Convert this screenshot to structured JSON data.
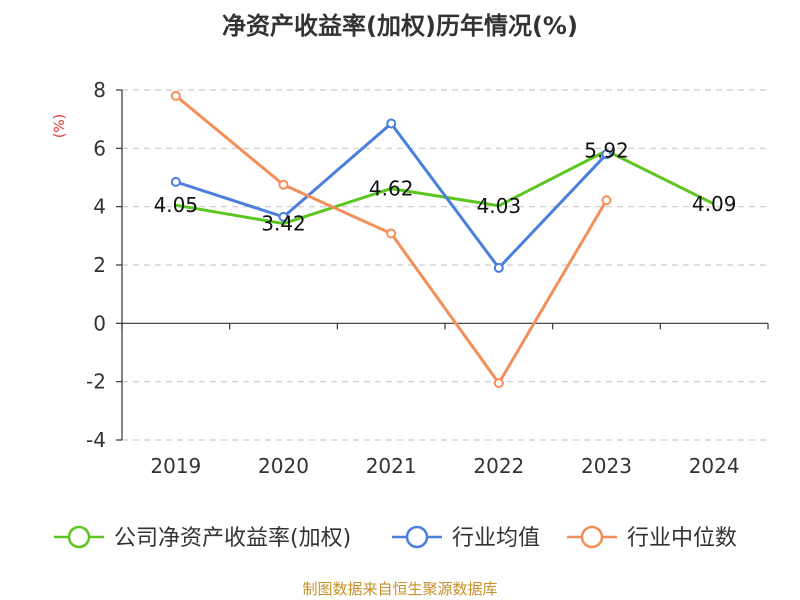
{
  "chart_data": {
    "type": "line",
    "title": "净资产收益率(加权)历年情况(%)",
    "ylabel": "(%)",
    "x": [
      "2019",
      "2020",
      "2021",
      "2022",
      "2023",
      "2024"
    ],
    "ylim": [
      -4,
      8
    ],
    "yticks": [
      8,
      6,
      4,
      2,
      0,
      -2,
      -4
    ],
    "grid": true,
    "legend_position": "bottom",
    "series": [
      {
        "name": "公司净资产收益率(加权)",
        "color": "#5cc520",
        "values": [
          4.05,
          3.42,
          4.62,
          4.03,
          5.92,
          4.09
        ],
        "labels": [
          "4.05",
          "3.42",
          "4.62",
          "4.03",
          "5.92",
          "4.09"
        ],
        "show_markers": false
      },
      {
        "name": "行业均值",
        "color": "#4a7fdc",
        "values": [
          4.85,
          3.65,
          6.85,
          1.9,
          5.8,
          null
        ],
        "show_markers": true
      },
      {
        "name": "行业中位数",
        "color": "#f58f5a",
        "values": [
          7.8,
          4.75,
          3.08,
          -2.05,
          4.22,
          null
        ],
        "show_markers": true
      }
    ],
    "source": "制图数据来自恒生聚源数据库"
  }
}
